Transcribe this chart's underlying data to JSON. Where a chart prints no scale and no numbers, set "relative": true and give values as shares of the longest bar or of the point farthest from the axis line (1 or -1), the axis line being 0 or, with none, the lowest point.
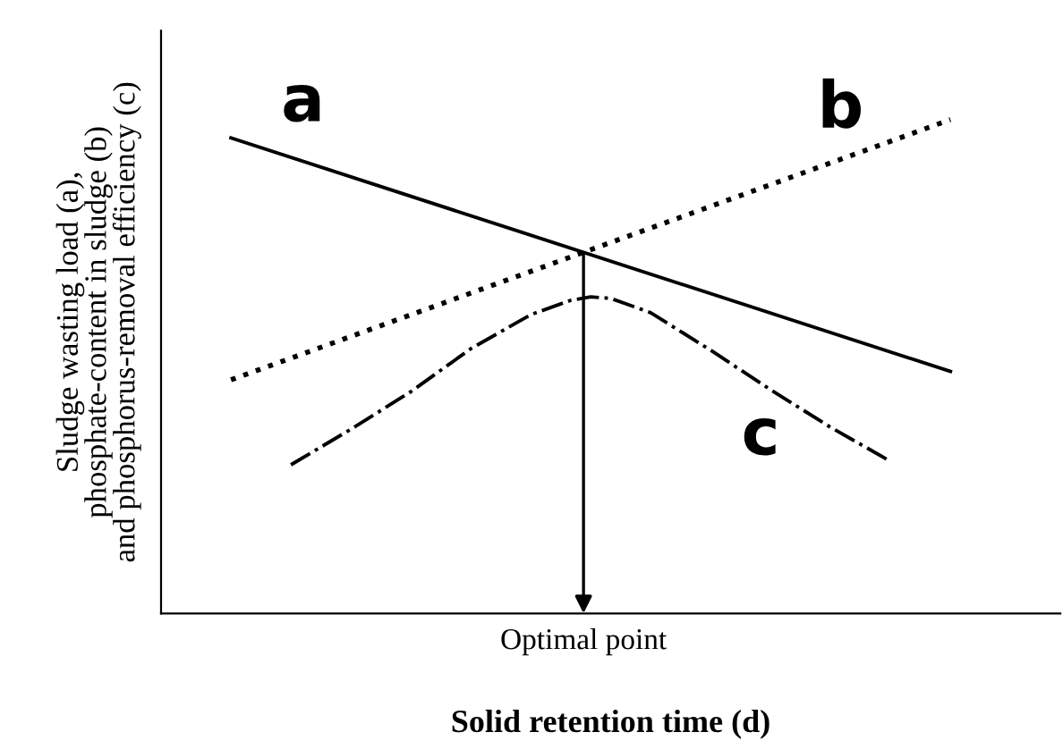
{
  "chart_data": {
    "type": "line",
    "relative": true,
    "xlabel": "Solid retention time (d)",
    "ylabel": "Sludge wasting load (a),\nphosphate-content in sludge (b)\nand phosphorus-removal efficiency (c)",
    "categories": [
      null,
      null,
      null,
      null,
      null,
      null,
      null,
      null,
      null,
      null,
      null,
      null,
      null,
      null,
      null,
      null,
      null,
      null,
      null,
      null,
      null,
      null,
      null,
      null,
      null,
      null,
      null,
      null,
      null,
      null,
      null,
      null,
      null,
      null,
      null,
      null,
      null,
      null,
      null,
      null,
      null,
      null,
      null,
      null,
      null
    ],
    "series": [
      {
        "name": "a",
        "color": "#000000",
        "line_style": "solid",
        "values": [
          null,
          null,
          null,
          0.963,
          null,
          null,
          null,
          null,
          null,
          null,
          null,
          null,
          null,
          null,
          null,
          null,
          null,
          null,
          null,
          null,
          null,
          null,
          null,
          null,
          null,
          null,
          null,
          null,
          null,
          null,
          null,
          null,
          null,
          null,
          null,
          null,
          null,
          null,
          null,
          0.49,
          null,
          null,
          null,
          null,
          null
        ]
      },
      {
        "name": "b",
        "color": "#000000",
        "line_style": "dotted",
        "values": [
          null,
          null,
          null,
          0.473,
          null,
          null,
          null,
          null,
          null,
          null,
          null,
          null,
          null,
          null,
          null,
          null,
          null,
          null,
          null,
          null,
          null,
          null,
          null,
          null,
          null,
          null,
          null,
          null,
          null,
          null,
          null,
          null,
          null,
          null,
          null,
          null,
          null,
          null,
          null,
          1,
          null,
          null,
          null,
          null,
          null
        ]
      },
      {
        "name": "c",
        "color": "#000000",
        "line_style": "dashdot",
        "values": [
          null,
          null,
          null,
          null,
          null,
          null,
          0.301,
          null,
          null,
          0.373,
          null,
          null,
          0.449,
          null,
          null,
          0.536,
          null,
          null,
          0.605,
          null,
          0.634,
          0.641,
          0.638,
          null,
          0.609,
          null,
          null,
          0.533,
          null,
          null,
          0.453,
          null,
          null,
          0.377,
          null,
          null,
          0.308,
          null,
          null,
          null,
          null,
          null,
          null,
          null,
          null
        ]
      }
    ],
    "annotations": [
      "Optimal point"
    ],
    "grid": false,
    "legend": false,
    "marker": "none"
  }
}
